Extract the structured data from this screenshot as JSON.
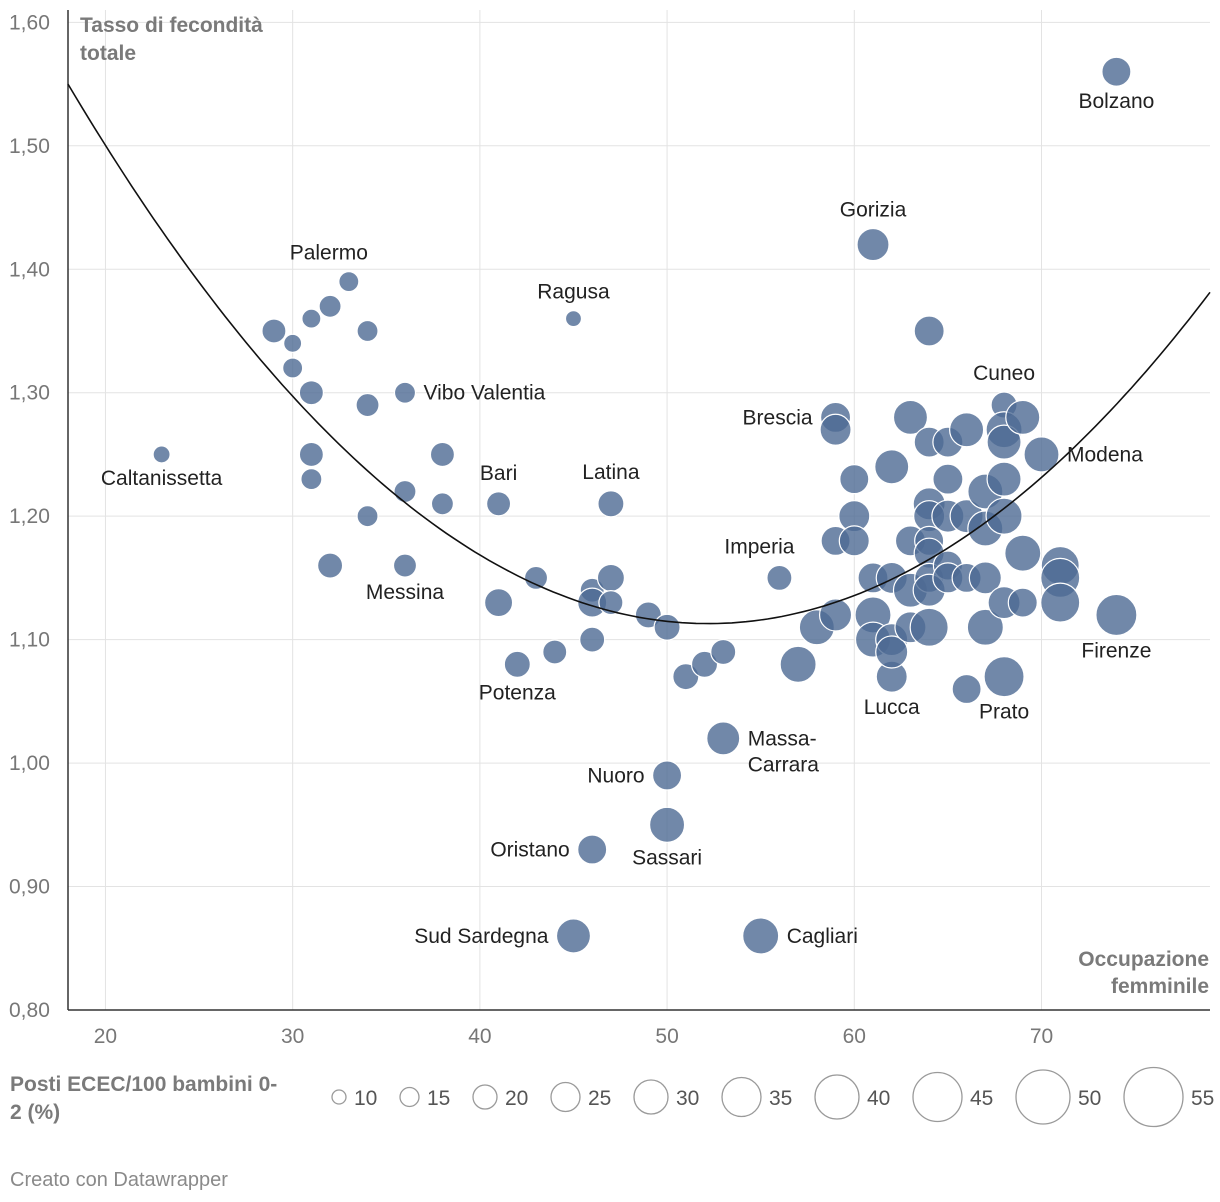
{
  "chart_data": {
    "type": "scatter",
    "title": "",
    "ylabel": [
      "Tasso di fecondità",
      "totale"
    ],
    "xlabel": [
      "Occupazione",
      "femminile"
    ],
    "xlim": [
      18,
      79
    ],
    "ylim": [
      0.8,
      1.61
    ],
    "x_ticks": [
      20,
      30,
      40,
      50,
      60,
      70
    ],
    "y_ticks": [
      {
        "value": 0.8,
        "label": "0,80"
      },
      {
        "value": 0.9,
        "label": "0,90"
      },
      {
        "value": 1.0,
        "label": "1,00"
      },
      {
        "value": 1.1,
        "label": "1,10"
      },
      {
        "value": 1.2,
        "label": "1,20"
      },
      {
        "value": 1.3,
        "label": "1,30"
      },
      {
        "value": 1.4,
        "label": "1,40"
      },
      {
        "value": 1.5,
        "label": "1,50"
      },
      {
        "value": 1.6,
        "label": "1,60"
      }
    ],
    "point_color": "#4e6a94",
    "trend_curve": {
      "type": "quadratic",
      "vertex_x": 52.2,
      "vertex_y": 1.113,
      "points": [
        [
          18,
          1.55
        ],
        [
          52.2,
          1.113
        ],
        [
          79,
          1.385
        ]
      ]
    },
    "size_legend": {
      "title": [
        "Posti ECEC/100 bambini 0-",
        "2 (%)"
      ],
      "values": [
        10,
        15,
        20,
        25,
        30,
        35,
        40,
        45,
        50,
        55
      ]
    },
    "points": [
      {
        "x": 74,
        "y": 1.56,
        "size": 25,
        "label": "Bolzano",
        "anchor": "below"
      },
      {
        "x": 61,
        "y": 1.42,
        "size": 28,
        "label": "Gorizia",
        "anchor": "above"
      },
      {
        "x": 33,
        "y": 1.39,
        "size": 16,
        "label": "Palermo",
        "anchor": "above-left"
      },
      {
        "x": 45,
        "y": 1.36,
        "size": 12,
        "label": "Ragusa",
        "anchor": "above"
      },
      {
        "x": 23,
        "y": 1.25,
        "size": 13,
        "label": "Caltanissetta",
        "anchor": "below"
      },
      {
        "x": 36,
        "y": 1.3,
        "size": 17,
        "label": "Vibo Valentia",
        "anchor": "right"
      },
      {
        "x": 41,
        "y": 1.21,
        "size": 20,
        "label": "Bari",
        "anchor": "above"
      },
      {
        "x": 47,
        "y": 1.21,
        "size": 22,
        "label": "Latina",
        "anchor": "above"
      },
      {
        "x": 36,
        "y": 1.16,
        "size": 19,
        "label": "Messina",
        "anchor": "below"
      },
      {
        "x": 42,
        "y": 1.08,
        "size": 22,
        "label": "Potenza",
        "anchor": "below"
      },
      {
        "x": 59,
        "y": 1.28,
        "size": 26,
        "label": "Brescia",
        "anchor": "left"
      },
      {
        "x": 68,
        "y": 1.29,
        "size": 22,
        "label": "Cuneo",
        "anchor": "above"
      },
      {
        "x": 70,
        "y": 1.25,
        "size": 31,
        "label": "Modena",
        "anchor": "right"
      },
      {
        "x": 56,
        "y": 1.15,
        "size": 21,
        "label": "Imperia",
        "anchor": "above-left"
      },
      {
        "x": 74,
        "y": 1.12,
        "size": 37,
        "label": "Firenze",
        "anchor": "below"
      },
      {
        "x": 62,
        "y": 1.07,
        "size": 27,
        "label": "Lucca",
        "anchor": "below"
      },
      {
        "x": 68,
        "y": 1.07,
        "size": 36,
        "label": "Prato",
        "anchor": "below"
      },
      {
        "x": 53,
        "y": 1.02,
        "size": 29,
        "label": "Massa-Carrara",
        "anchor": "right-two"
      },
      {
        "x": 50,
        "y": 0.99,
        "size": 25,
        "label": "Nuoro",
        "anchor": "left"
      },
      {
        "x": 50,
        "y": 0.95,
        "size": 31,
        "label": "Sassari",
        "anchor": "below"
      },
      {
        "x": 46,
        "y": 0.93,
        "size": 25,
        "label": "Oristano",
        "anchor": "left"
      },
      {
        "x": 45,
        "y": 0.86,
        "size": 30,
        "label": "Sud Sardegna",
        "anchor": "left"
      },
      {
        "x": 55,
        "y": 0.86,
        "size": 32,
        "label": "Cagliari",
        "anchor": "right"
      },
      {
        "x": 29,
        "y": 1.35,
        "size": 20
      },
      {
        "x": 30,
        "y": 1.34,
        "size": 14
      },
      {
        "x": 31,
        "y": 1.36,
        "size": 15
      },
      {
        "x": 32,
        "y": 1.37,
        "size": 18
      },
      {
        "x": 34,
        "y": 1.35,
        "size": 17
      },
      {
        "x": 30,
        "y": 1.32,
        "size": 16
      },
      {
        "x": 31,
        "y": 1.3,
        "size": 20
      },
      {
        "x": 34,
        "y": 1.29,
        "size": 19
      },
      {
        "x": 31,
        "y": 1.25,
        "size": 20
      },
      {
        "x": 31,
        "y": 1.23,
        "size": 17
      },
      {
        "x": 38,
        "y": 1.25,
        "size": 20
      },
      {
        "x": 36,
        "y": 1.22,
        "size": 18
      },
      {
        "x": 38,
        "y": 1.21,
        "size": 18
      },
      {
        "x": 34,
        "y": 1.2,
        "size": 17
      },
      {
        "x": 32,
        "y": 1.16,
        "size": 21
      },
      {
        "x": 41,
        "y": 1.13,
        "size": 24
      },
      {
        "x": 43,
        "y": 1.15,
        "size": 19
      },
      {
        "x": 44,
        "y": 1.09,
        "size": 20
      },
      {
        "x": 46,
        "y": 1.14,
        "size": 20
      },
      {
        "x": 46,
        "y": 1.13,
        "size": 25
      },
      {
        "x": 47,
        "y": 1.15,
        "size": 23
      },
      {
        "x": 47,
        "y": 1.13,
        "size": 20
      },
      {
        "x": 46,
        "y": 1.1,
        "size": 21
      },
      {
        "x": 49,
        "y": 1.12,
        "size": 22
      },
      {
        "x": 50,
        "y": 1.11,
        "size": 22
      },
      {
        "x": 51,
        "y": 1.07,
        "size": 22
      },
      {
        "x": 52,
        "y": 1.08,
        "size": 22
      },
      {
        "x": 53,
        "y": 1.09,
        "size": 21
      },
      {
        "x": 57,
        "y": 1.08,
        "size": 32
      },
      {
        "x": 58,
        "y": 1.11,
        "size": 31
      },
      {
        "x": 59,
        "y": 1.12,
        "size": 28
      },
      {
        "x": 59,
        "y": 1.18,
        "size": 25
      },
      {
        "x": 59,
        "y": 1.27,
        "size": 27
      },
      {
        "x": 60,
        "y": 1.23,
        "size": 25
      },
      {
        "x": 60,
        "y": 1.2,
        "size": 27
      },
      {
        "x": 60,
        "y": 1.18,
        "size": 26
      },
      {
        "x": 61,
        "y": 1.15,
        "size": 26
      },
      {
        "x": 61,
        "y": 1.12,
        "size": 32
      },
      {
        "x": 61,
        "y": 1.1,
        "size": 31
      },
      {
        "x": 62,
        "y": 1.24,
        "size": 30
      },
      {
        "x": 62,
        "y": 1.15,
        "size": 27
      },
      {
        "x": 62,
        "y": 1.1,
        "size": 28
      },
      {
        "x": 62,
        "y": 1.09,
        "size": 28
      },
      {
        "x": 63,
        "y": 1.28,
        "size": 30
      },
      {
        "x": 63,
        "y": 1.18,
        "size": 26
      },
      {
        "x": 63,
        "y": 1.14,
        "size": 30
      },
      {
        "x": 63,
        "y": 1.11,
        "size": 27
      },
      {
        "x": 64,
        "y": 1.35,
        "size": 26
      },
      {
        "x": 64,
        "y": 1.26,
        "size": 26
      },
      {
        "x": 64,
        "y": 1.21,
        "size": 28
      },
      {
        "x": 64,
        "y": 1.2,
        "size": 27
      },
      {
        "x": 64,
        "y": 1.18,
        "size": 25
      },
      {
        "x": 64,
        "y": 1.17,
        "size": 26
      },
      {
        "x": 64,
        "y": 1.15,
        "size": 25
      },
      {
        "x": 64,
        "y": 1.14,
        "size": 28
      },
      {
        "x": 64,
        "y": 1.11,
        "size": 34
      },
      {
        "x": 65,
        "y": 1.26,
        "size": 26
      },
      {
        "x": 65,
        "y": 1.23,
        "size": 26
      },
      {
        "x": 65,
        "y": 1.2,
        "size": 28
      },
      {
        "x": 65,
        "y": 1.16,
        "size": 25
      },
      {
        "x": 65,
        "y": 1.15,
        "size": 26
      },
      {
        "x": 66,
        "y": 1.27,
        "size": 30
      },
      {
        "x": 66,
        "y": 1.2,
        "size": 29
      },
      {
        "x": 66,
        "y": 1.15,
        "size": 25
      },
      {
        "x": 66,
        "y": 1.06,
        "size": 25
      },
      {
        "x": 67,
        "y": 1.22,
        "size": 31
      },
      {
        "x": 67,
        "y": 1.19,
        "size": 31
      },
      {
        "x": 67,
        "y": 1.15,
        "size": 28
      },
      {
        "x": 67,
        "y": 1.11,
        "size": 32
      },
      {
        "x": 68,
        "y": 1.27,
        "size": 32
      },
      {
        "x": 68,
        "y": 1.26,
        "size": 30
      },
      {
        "x": 68,
        "y": 1.23,
        "size": 30
      },
      {
        "x": 68,
        "y": 1.2,
        "size": 32
      },
      {
        "x": 68,
        "y": 1.13,
        "size": 28
      },
      {
        "x": 69,
        "y": 1.28,
        "size": 30
      },
      {
        "x": 69,
        "y": 1.17,
        "size": 32
      },
      {
        "x": 69,
        "y": 1.13,
        "size": 25
      },
      {
        "x": 71,
        "y": 1.16,
        "size": 34
      },
      {
        "x": 71,
        "y": 1.15,
        "size": 35
      },
      {
        "x": 71,
        "y": 1.13,
        "size": 35
      }
    ]
  },
  "footer": "Creato con Datawrapper"
}
